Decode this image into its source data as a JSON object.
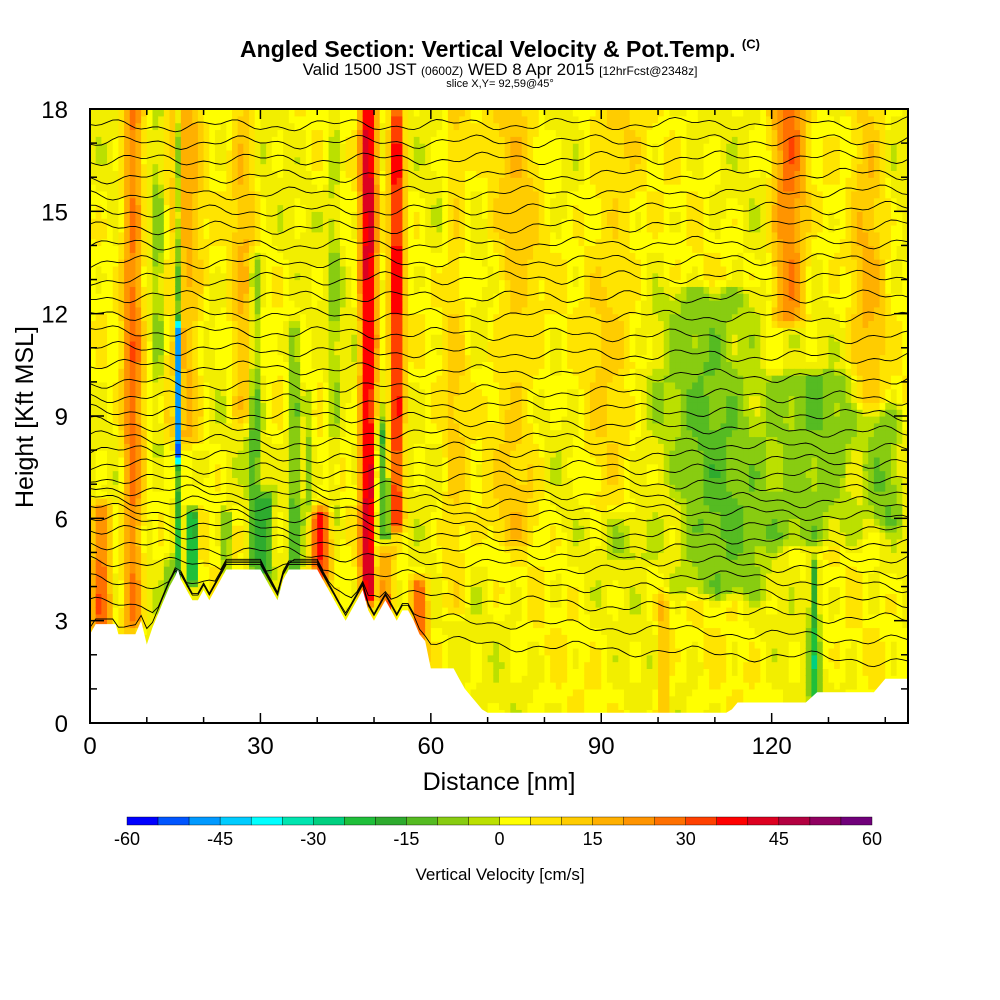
{
  "title": {
    "main": "Angled Section: Vertical Velocity & Pot.Temp.",
    "main_unit": "(C)",
    "valid_prefix": "Valid 1500 JST",
    "valid_utc": "(0600Z)",
    "valid_date": "WED 8 Apr 2015",
    "forecast": "[12hrFcst@2348z]",
    "slice": "slice X,Y= 92,59@45°"
  },
  "chart_data": {
    "type": "heatmap",
    "xlabel": "Distance [nm]",
    "ylabel": "Height [Kft MSL]",
    "xlim": [
      0,
      144
    ],
    "ylim": [
      0,
      18
    ],
    "x_ticks": [
      0,
      30,
      60,
      90,
      120
    ],
    "y_ticks": [
      0,
      3,
      6,
      9,
      12,
      15,
      18
    ],
    "colorbar": {
      "label": "Vertical Velocity [cm/s]",
      "ticks": [
        -60,
        -45,
        -30,
        -15,
        0,
        15,
        30,
        45,
        60
      ],
      "bins": [
        -60,
        -55,
        -50,
        -45,
        -40,
        -35,
        -30,
        -25,
        -20,
        -15,
        -10,
        -5,
        0,
        5,
        10,
        15,
        20,
        25,
        30,
        35,
        40,
        45,
        50,
        55,
        60
      ],
      "colors": [
        "#0000ff",
        "#0055ff",
        "#0099ff",
        "#00ccff",
        "#00ffff",
        "#00e5b0",
        "#00d080",
        "#1fbf3a",
        "#2eab2e",
        "#55bb22",
        "#88cc11",
        "#bbe000",
        "#ffff00",
        "#ffe400",
        "#ffcc00",
        "#ffb000",
        "#ff9400",
        "#ff7000",
        "#ff4000",
        "#ff0000",
        "#dd0020",
        "#b30040",
        "#900060",
        "#70007a"
      ]
    },
    "field_colors": {
      "neutral": "#f2ee00",
      "terrain": "#ffffff"
    },
    "terrain": {
      "x": [
        0,
        1,
        4.5,
        5,
        8,
        9,
        10,
        11,
        12,
        13,
        14,
        15,
        15.5,
        16,
        17,
        18,
        19,
        20,
        21,
        22,
        23,
        24,
        26,
        30,
        31,
        32,
        33,
        34,
        35,
        36,
        38,
        40,
        41,
        42,
        43,
        44,
        45,
        46,
        47,
        48,
        49,
        50,
        51,
        52,
        53,
        54,
        55,
        56,
        57,
        58,
        59,
        59.5,
        60,
        62,
        64,
        65,
        66,
        67,
        68,
        69,
        70,
        73,
        100,
        112,
        113,
        114,
        120,
        122,
        126,
        128,
        135,
        138,
        140,
        144
      ],
      "y": [
        2.6,
        2.9,
        2.9,
        2.6,
        2.6,
        3.0,
        2.3,
        2.8,
        3.2,
        3.6,
        4.0,
        4.3,
        4.5,
        4.2,
        3.9,
        3.6,
        3.6,
        3.9,
        3.6,
        3.9,
        4.2,
        4.5,
        4.5,
        4.5,
        4.2,
        3.9,
        3.6,
        4.2,
        4.5,
        4.5,
        4.5,
        4.5,
        4.2,
        3.9,
        3.6,
        3.3,
        3.0,
        3.3,
        3.6,
        3.9,
        3.3,
        3.0,
        3.3,
        3.6,
        3.3,
        3.0,
        3.3,
        3.3,
        3.0,
        2.6,
        2.4,
        2.0,
        1.6,
        1.6,
        1.6,
        1.3,
        1.0,
        0.8,
        0.6,
        0.4,
        0.3,
        0.3,
        0.3,
        0.3,
        0.4,
        0.6,
        0.6,
        0.6,
        0.6,
        0.9,
        0.9,
        0.9,
        1.3,
        1.3
      ]
    },
    "positive_features": [
      {
        "x": 7.5,
        "y0": 3.0,
        "y1": 18,
        "w": 3.0,
        "v": 24
      },
      {
        "x": 16.5,
        "y0": 8.5,
        "y1": 18,
        "w": 5.0,
        "v": 16
      },
      {
        "x": 27,
        "y0": 9,
        "y1": 18,
        "w": 3.5,
        "v": 12
      },
      {
        "x": 49,
        "y0": 3.8,
        "y1": 18,
        "w": 2.6,
        "v": 40
      },
      {
        "x": 54,
        "y0": 6.0,
        "y1": 18,
        "w": 2.2,
        "v": 36
      },
      {
        "x": 52,
        "y0": 3.0,
        "y1": 5.0,
        "w": 2.0,
        "v": 35
      },
      {
        "x": 40.5,
        "y0": 4.3,
        "y1": 6.0,
        "w": 3.0,
        "v": 32
      },
      {
        "x": 2.0,
        "y0": 3.0,
        "y1": 6.2,
        "w": 3.0,
        "v": 25
      },
      {
        "x": 58,
        "y0": 2.0,
        "y1": 4.0,
        "w": 2.5,
        "v": 24
      },
      {
        "x": 75,
        "y0": 5.5,
        "y1": 18,
        "w": 7.0,
        "v": 9
      },
      {
        "x": 92,
        "y0": 6.5,
        "y1": 18,
        "w": 8.0,
        "v": 8
      },
      {
        "x": 101,
        "y0": 0.4,
        "y1": 3.5,
        "w": 2.0,
        "v": 14
      },
      {
        "x": 123,
        "y0": 12.0,
        "y1": 18,
        "w": 5.0,
        "v": 24
      },
      {
        "x": 137,
        "y0": 9.5,
        "y1": 18,
        "w": 5.0,
        "v": 12
      },
      {
        "x": 64,
        "y0": 3.5,
        "y1": 18,
        "w": 4.0,
        "v": 8
      }
    ],
    "negative_features": [
      {
        "x": 15.5,
        "y0": 4.3,
        "y1": 18,
        "w": 1.3,
        "v": -22
      },
      {
        "x": 15.5,
        "y0": 8.0,
        "y1": 11.5,
        "w": 1.0,
        "v": -42
      },
      {
        "x": 18,
        "y0": 4.4,
        "y1": 6.0,
        "w": 1.6,
        "v": -36
      },
      {
        "x": 12,
        "y0": 8.0,
        "y1": 18,
        "w": 2.0,
        "v": -8
      },
      {
        "x": 29,
        "y0": 4.6,
        "y1": 13.5,
        "w": 2.0,
        "v": -15
      },
      {
        "x": 36,
        "y0": 4.6,
        "y1": 11.5,
        "w": 2.0,
        "v": -14
      },
      {
        "x": 38.5,
        "y0": 6.0,
        "y1": 9.5,
        "w": 1.5,
        "v": -10
      },
      {
        "x": 51,
        "y0": 3.4,
        "y1": 8.5,
        "w": 1.2,
        "v": -25
      },
      {
        "x": 52.3,
        "y0": 4.0,
        "y1": 7.0,
        "w": 0.9,
        "v": -20
      },
      {
        "x": 31,
        "y0": 4.5,
        "y1": 6.5,
        "w": 2.0,
        "v": -18
      },
      {
        "x": 24,
        "y0": 4.5,
        "y1": 6.0,
        "w": 1.5,
        "v": -12
      },
      {
        "x": 43,
        "y0": 6.0,
        "y1": 18,
        "w": 2.0,
        "v": -7
      },
      {
        "x": 110,
        "y0": 4.0,
        "y1": 12.5,
        "w": 14.0,
        "v": -12
      },
      {
        "x": 126,
        "y0": 5.5,
        "y1": 10.0,
        "w": 14.0,
        "v": -12
      },
      {
        "x": 96,
        "y0": 5.0,
        "y1": 10.0,
        "w": 8.0,
        "v": -6
      },
      {
        "x": 127.5,
        "y0": 0.6,
        "y1": 4.5,
        "w": 1.5,
        "v": -22
      },
      {
        "x": 14,
        "y0": 3.0,
        "y1": 4.5,
        "w": 1.5,
        "v": -10
      },
      {
        "x": 62,
        "y0": 7.0,
        "y1": 18,
        "w": 2.0,
        "v": -3
      },
      {
        "x": 140,
        "y0": 6.0,
        "y1": 9.0,
        "w": 5.0,
        "v": -10
      }
    ],
    "isentropes": {
      "left": [
        2.8,
        3.5,
        4.2,
        4.8,
        5.3,
        5.7,
        6.0,
        6.3,
        6.6,
        6.9,
        7.2,
        7.6,
        8.0,
        8.4,
        8.8,
        9.2,
        9.6,
        10.0,
        10.5,
        11.0,
        11.5,
        12.0,
        12.5,
        13.0,
        13.5,
        14.0,
        14.5,
        15.0,
        15.5,
        16.0,
        16.5,
        17.0,
        17.5
      ],
      "right": [
        1.8,
        2.4,
        3.0,
        3.5,
        4.0,
        4.4,
        4.8,
        5.2,
        5.6,
        6.0,
        6.4,
        6.8,
        7.2,
        7.6,
        8.0,
        8.5,
        9.0,
        9.5,
        10.1,
        10.7,
        11.3,
        11.9,
        12.5,
        13.1,
        13.6,
        14.1,
        14.6,
        15.1,
        15.6,
        16.1,
        16.6,
        17.1,
        17.6
      ]
    }
  }
}
